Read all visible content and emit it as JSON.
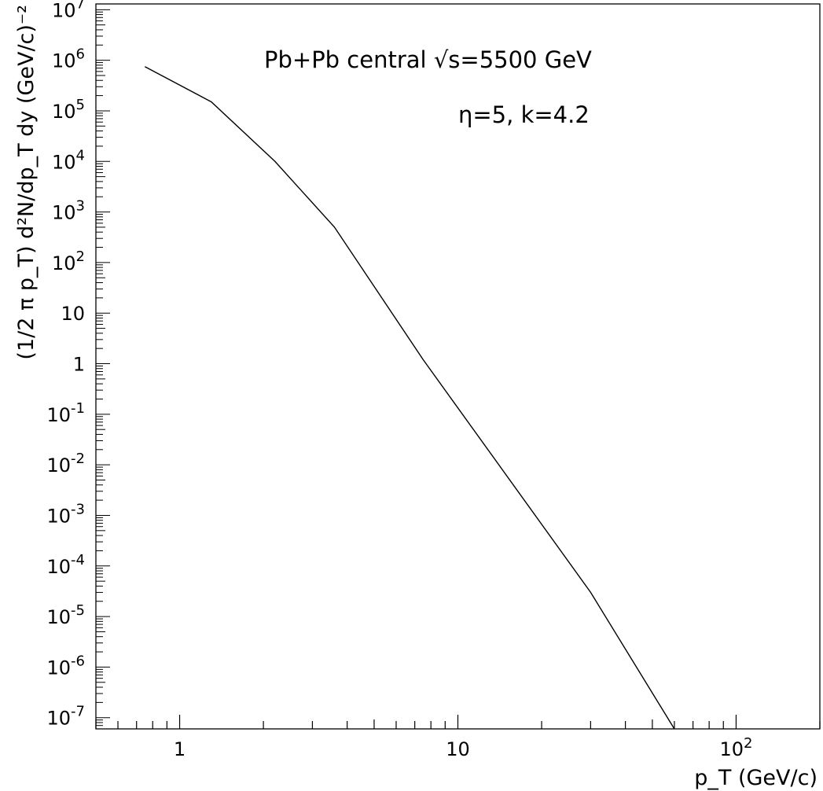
{
  "chart_data": {
    "type": "line",
    "x_scale": "log",
    "y_scale": "log",
    "xlim": [
      0.5,
      200
    ],
    "ylim": [
      6e-08,
      13000000.0
    ],
    "grid": false,
    "xlabel": "p_T (GeV/c)",
    "ylabel": "(1/2 π p_T) d²N/dp_T dy (GeV/c)⁻²",
    "annotations": [
      "Pb+Pb central √s=5500 GeV",
      "η=5, k=4.2"
    ],
    "x_ticks": [
      {
        "value": 1,
        "label": "1"
      },
      {
        "value": 10,
        "label": "10"
      },
      {
        "value": 100,
        "label": "10",
        "sup": "2"
      }
    ],
    "y_ticks": [
      {
        "value": 10000000.0,
        "base": "10",
        "sup": "7"
      },
      {
        "value": 1000000.0,
        "base": "10",
        "sup": "6"
      },
      {
        "value": 100000.0,
        "base": "10",
        "sup": "5"
      },
      {
        "value": 10000.0,
        "base": "10",
        "sup": "4"
      },
      {
        "value": 1000.0,
        "base": "10",
        "sup": "3"
      },
      {
        "value": 100.0,
        "base": "10",
        "sup": "2"
      },
      {
        "value": 10,
        "base": "10",
        "sup": ""
      },
      {
        "value": 1,
        "base": "1",
        "sup": ""
      },
      {
        "value": 0.1,
        "base": "10",
        "sup": "-1"
      },
      {
        "value": 0.01,
        "base": "10",
        "sup": "-2"
      },
      {
        "value": 0.001,
        "base": "10",
        "sup": "-3"
      },
      {
        "value": 0.0001,
        "base": "10",
        "sup": "-4"
      },
      {
        "value": 1e-05,
        "base": "10",
        "sup": "-5"
      },
      {
        "value": 1e-06,
        "base": "10",
        "sup": "-6"
      },
      {
        "value": 1e-07,
        "base": "10",
        "sup": "-7"
      }
    ],
    "series": [
      {
        "x": [
          0.75,
          1.3,
          2.2,
          3.6,
          7.5,
          30,
          60
        ],
        "y": [
          750000,
          150000,
          10000,
          500,
          1.2,
          3e-05,
          6e-08
        ]
      }
    ]
  }
}
